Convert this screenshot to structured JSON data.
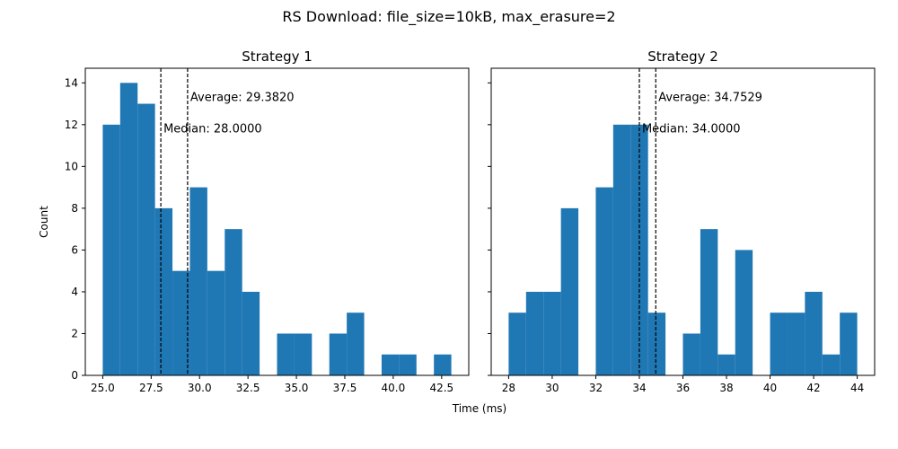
{
  "figure": {
    "title": "RS Download: file_size=10kB, max_erasure=2",
    "xlabel": "Time (ms)",
    "ylabel": "Count"
  },
  "chart_data": [
    {
      "type": "bar",
      "title": "Strategy 1",
      "bin_edges": [
        25.0,
        25.9,
        26.8,
        27.7,
        28.6,
        29.5,
        30.4,
        31.3,
        32.2,
        33.1,
        34.0,
        34.9,
        35.8,
        36.7,
        37.6,
        38.5,
        39.4,
        40.3,
        41.2,
        42.1,
        43.0
      ],
      "counts": [
        12,
        14,
        13,
        8,
        5,
        9,
        5,
        7,
        4,
        0,
        2,
        2,
        0,
        2,
        3,
        0,
        1,
        1,
        0,
        1
      ],
      "xlim": [
        24.1,
        43.9
      ],
      "ylim": [
        0,
        14.7
      ],
      "xticks": [
        25.0,
        27.5,
        30.0,
        32.5,
        35.0,
        37.5,
        40.0,
        42.5
      ],
      "xtick_labels": [
        "25.0",
        "27.5",
        "30.0",
        "32.5",
        "35.0",
        "37.5",
        "40.0",
        "42.5"
      ],
      "yticks": [
        0,
        2,
        4,
        6,
        8,
        10,
        12,
        14
      ],
      "ytick_labels": [
        "0",
        "2",
        "4",
        "6",
        "8",
        "10",
        "12",
        "14"
      ],
      "median": 28.0,
      "average": 29.382,
      "median_label": "Median: 28.0000",
      "average_label": "Average: 29.3820",
      "bar_color": "#1f77b4"
    },
    {
      "type": "bar",
      "title": "Strategy 2",
      "bin_edges": [
        28.0,
        28.8,
        29.6,
        30.4,
        31.2,
        32.0,
        32.8,
        33.6,
        34.4,
        35.2,
        36.0,
        36.8,
        37.6,
        38.4,
        39.2,
        40.0,
        40.8,
        41.6,
        42.4,
        43.2,
        44.0
      ],
      "counts": [
        3,
        4,
        4,
        8,
        0,
        9,
        12,
        12,
        3,
        0,
        2,
        7,
        1,
        6,
        0,
        3,
        3,
        4,
        1,
        3
      ],
      "xlim": [
        27.2,
        44.8
      ],
      "ylim": [
        0,
        14.7
      ],
      "xticks": [
        28,
        30,
        32,
        34,
        36,
        38,
        40,
        42,
        44
      ],
      "xtick_labels": [
        "28",
        "30",
        "32",
        "34",
        "36",
        "38",
        "40",
        "42",
        "44"
      ],
      "yticks": [
        0,
        2,
        4,
        6,
        8,
        10,
        12,
        14
      ],
      "ytick_labels": [],
      "median": 34.0,
      "average": 34.7529,
      "median_label": "Median: 34.0000",
      "average_label": "Average: 34.7529",
      "bar_color": "#1f77b4"
    }
  ]
}
